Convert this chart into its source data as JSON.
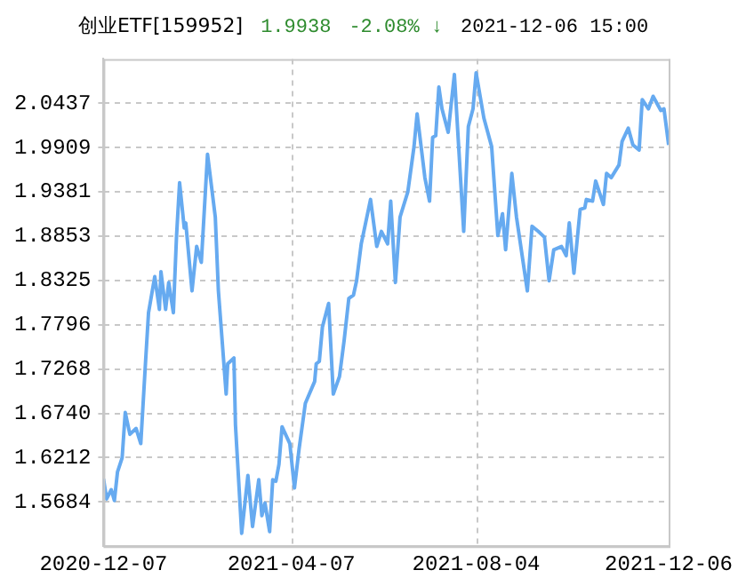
{
  "chart_data": {
    "type": "line",
    "title": "创业ETF[159952]",
    "annotations": [
      "1.9938",
      "-2.08% ↓",
      "2021-12-06 15:00"
    ],
    "x": [
      "2020-12-07",
      "2020-12-09",
      "2020-12-12",
      "2020-12-14",
      "2020-12-16",
      "2020-12-19",
      "2020-12-21",
      "2020-12-24",
      "2020-12-28",
      "2020-12-31",
      "2021-01-03",
      "2021-01-05",
      "2021-01-09",
      "2021-01-12",
      "2021-01-13",
      "2021-01-16",
      "2021-01-18",
      "2021-01-21",
      "2021-01-23",
      "2021-01-25",
      "2021-01-28",
      "2021-01-29",
      "2021-02-02",
      "2021-02-05",
      "2021-02-08",
      "2021-02-12",
      "2021-02-17",
      "2021-02-19",
      "2021-02-24",
      "2021-02-25",
      "2021-03-01",
      "2021-03-02",
      "2021-03-06",
      "2021-03-10",
      "2021-03-13",
      "2021-03-17",
      "2021-03-19",
      "2021-03-21",
      "2021-03-24",
      "2021-03-26",
      "2021-03-28",
      "2021-03-30",
      "2021-04-01",
      "2021-04-06",
      "2021-04-09",
      "2021-04-12",
      "2021-04-16",
      "2021-04-22",
      "2021-04-23",
      "2021-04-25",
      "2021-04-27",
      "2021-05-01",
      "2021-05-04",
      "2021-05-08",
      "2021-05-11",
      "2021-05-14",
      "2021-05-17",
      "2021-05-19",
      "2021-05-22",
      "2021-05-28",
      "2021-06-01",
      "2021-06-04",
      "2021-06-08",
      "2021-06-10",
      "2021-06-13",
      "2021-06-16",
      "2021-06-21",
      "2021-06-25",
      "2021-06-27",
      "2021-07-02",
      "2021-07-05",
      "2021-07-07",
      "2021-07-09",
      "2021-07-11",
      "2021-07-13",
      "2021-07-17",
      "2021-07-21",
      "2021-07-27",
      "2021-07-30",
      "2021-08-02",
      "2021-08-04",
      "2021-08-09",
      "2021-08-14",
      "2021-08-18",
      "2021-08-21",
      "2021-08-23",
      "2021-08-27",
      "2021-08-30",
      "2021-09-06",
      "2021-09-09",
      "2021-09-13",
      "2021-09-17",
      "2021-09-20",
      "2021-09-23",
      "2021-09-28",
      "2021-10-01",
      "2021-10-03",
      "2021-10-06",
      "2021-10-10",
      "2021-10-13",
      "2021-10-14",
      "2021-10-18",
      "2021-10-20",
      "2021-10-25",
      "2021-10-27",
      "2021-10-30",
      "2021-11-04",
      "2021-11-06",
      "2021-11-10",
      "2021-11-13",
      "2021-11-17",
      "2021-11-19",
      "2021-11-23",
      "2021-11-26",
      "2021-12-01",
      "2021-12-03",
      "2021-12-06"
    ],
    "series": [
      {
        "color": "#66aaf0",
        "values": [
          1.596,
          1.572,
          1.583,
          1.57,
          1.604,
          1.621,
          1.675,
          1.649,
          1.656,
          1.638,
          1.733,
          1.794,
          1.837,
          1.798,
          1.843,
          1.798,
          1.83,
          1.794,
          1.884,
          1.949,
          1.895,
          1.901,
          1.82,
          1.873,
          1.854,
          1.983,
          1.908,
          1.82,
          1.697,
          1.733,
          1.74,
          1.66,
          1.531,
          1.6,
          1.539,
          1.595,
          1.552,
          1.567,
          1.533,
          1.595,
          1.593,
          1.613,
          1.658,
          1.638,
          1.585,
          1.632,
          1.686,
          1.712,
          1.733,
          1.736,
          1.777,
          1.805,
          1.697,
          1.718,
          1.761,
          1.811,
          1.815,
          1.832,
          1.876,
          1.929,
          1.873,
          1.891,
          1.876,
          1.927,
          1.83,
          1.908,
          1.938,
          1.992,
          2.031,
          1.955,
          1.927,
          2.003,
          2.005,
          2.063,
          2.037,
          2.009,
          2.078,
          1.891,
          2.016,
          2.037,
          2.08,
          2.026,
          1.992,
          1.886,
          1.912,
          1.869,
          1.96,
          1.908,
          1.82,
          1.897,
          1.891,
          1.884,
          1.832,
          1.869,
          1.873,
          1.862,
          1.901,
          1.841,
          1.917,
          1.919,
          1.929,
          1.927,
          1.951,
          1.923,
          1.96,
          1.955,
          1.97,
          1.998,
          2.014,
          1.994,
          1.988,
          2.048,
          2.037,
          2.052,
          2.035,
          2.037,
          1.994
        ]
      }
    ],
    "xlim": [
      "2020-12-07",
      "2021-12-06"
    ],
    "xticks": [
      "2020-12-07",
      "2021-04-07",
      "2021-08-04",
      "2021-12-06"
    ],
    "ylim": [
      1.5156,
      2.0965
    ],
    "yticks": [
      {
        "value": 1.5684,
        "label": "1.5684"
      },
      {
        "value": 1.6212,
        "label": "1.6212"
      },
      {
        "value": 1.674,
        "label": "1.6740"
      },
      {
        "value": 1.7268,
        "label": "1.7268"
      },
      {
        "value": 1.7796,
        "label": "1.7796"
      },
      {
        "value": 1.8325,
        "label": "1.8325"
      },
      {
        "value": 1.8853,
        "label": "1.8853"
      },
      {
        "value": 1.9381,
        "label": "1.9381"
      },
      {
        "value": 1.9909,
        "label": "1.9909"
      },
      {
        "value": 2.0437,
        "label": "2.0437"
      }
    ],
    "grid": true,
    "legend": false,
    "marker": "none",
    "line_style": "solid"
  }
}
